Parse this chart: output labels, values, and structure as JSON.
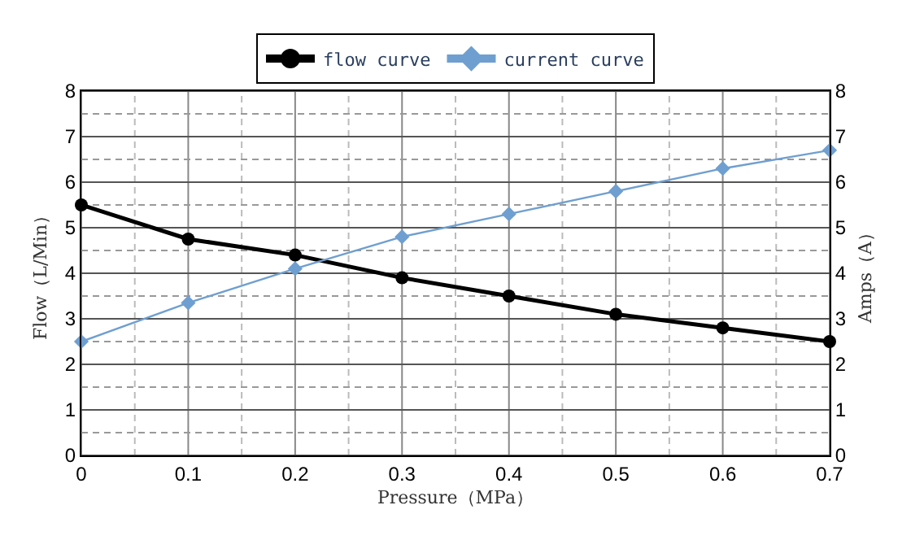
{
  "chart_data": {
    "type": "line",
    "xlabel": "Pressure（MPa）",
    "ylabel": "Flow（L/Min）",
    "y2label": "Amps（A）",
    "x": [
      0,
      0.1,
      0.2,
      0.3,
      0.4,
      0.5,
      0.6,
      0.7
    ],
    "series": [
      {
        "name": "flow curve",
        "color": "#000000",
        "marker": "circle",
        "values": [
          5.5,
          4.75,
          4.4,
          3.9,
          3.5,
          3.1,
          2.8,
          2.5
        ]
      },
      {
        "name": "current curve",
        "color": "#6f9fd0",
        "marker": "diamond",
        "axis": "y2",
        "values": [
          2.5,
          3.35,
          4.1,
          4.8,
          5.3,
          5.8,
          6.3,
          6.7
        ]
      }
    ],
    "xlim": [
      0,
      0.7
    ],
    "xticks": [
      0,
      {
        "value": 0.05,
        "label": null
      },
      0.1,
      {
        "value": 0.15,
        "label": null
      },
      0.2,
      {
        "value": 0.25,
        "label": null
      },
      0.3,
      {
        "value": 0.35,
        "label": null
      },
      0.4,
      {
        "value": 0.45,
        "label": null
      },
      0.5,
      {
        "value": 0.55,
        "label": null
      },
      0.6,
      {
        "value": 0.65,
        "label": null
      },
      0.7
    ],
    "ylim": [
      0,
      8
    ],
    "yticks": [
      0,
      {
        "value": 0.5,
        "label": null
      },
      1,
      {
        "value": 1.5,
        "label": null
      },
      2,
      {
        "value": 2.5,
        "label": null
      },
      3,
      {
        "value": 3.5,
        "label": null
      },
      4,
      {
        "value": 4.5,
        "label": null
      },
      5,
      {
        "value": 5.5,
        "label": null
      },
      6,
      {
        "value": 6.5,
        "label": null
      },
      7,
      {
        "value": 7.5,
        "label": null
      },
      8
    ],
    "y2lim": [
      0,
      8
    ],
    "y2ticks": [
      0,
      1,
      2,
      3,
      4,
      5,
      6,
      7,
      8
    ],
    "grid": true,
    "legend": "top"
  }
}
